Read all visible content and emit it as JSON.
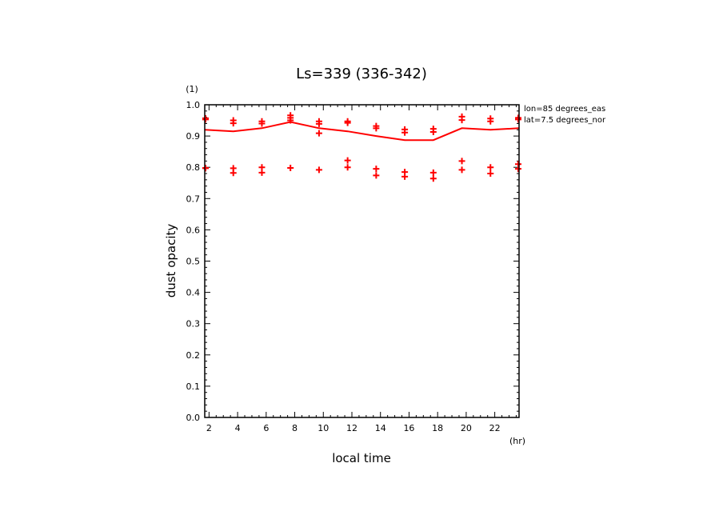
{
  "chart_data": {
    "type": "line",
    "title": "Ls=339 (336-342)",
    "xlabel": "local time",
    "ylabel": "dust opacity",
    "x_unit": "(hr)",
    "y_unit": "(1)",
    "xlim": [
      1.7,
      23.7
    ],
    "ylim": [
      0.0,
      1.0
    ],
    "x_ticks": [
      2,
      4,
      6,
      8,
      10,
      12,
      14,
      16,
      18,
      20,
      22
    ],
    "y_ticks": [
      0.0,
      0.1,
      0.2,
      0.3,
      0.4,
      0.5,
      0.6,
      0.7,
      0.8,
      0.9,
      1.0
    ],
    "x_tick_labels": [
      "2",
      "4",
      "6",
      "8",
      "10",
      "12",
      "14",
      "16",
      "18",
      "20",
      "22"
    ],
    "y_tick_labels": [
      "0.0",
      "0.1",
      "0.2",
      "0.3",
      "0.4",
      "0.5",
      "0.6",
      "0.7",
      "0.8",
      "0.9",
      "1.0"
    ],
    "annotations": [
      "lon=85 degrees_eas",
      "lat=7.5 degrees_nor"
    ],
    "color": "#ff0000",
    "series": [
      {
        "style": "line",
        "x": [
          1.7,
          3.7,
          5.7,
          7.7,
          9.7,
          11.7,
          13.7,
          15.7,
          17.7,
          19.7,
          21.7,
          23.7
        ],
        "values": [
          0.92,
          0.915,
          0.925,
          0.945,
          0.925,
          0.915,
          0.9,
          0.887,
          0.887,
          0.925,
          0.92,
          0.925
        ]
      },
      {
        "style": "markers",
        "marker": "+",
        "points": [
          [
            1.7,
            0.957
          ],
          [
            1.7,
            0.953
          ],
          [
            1.7,
            0.798
          ],
          [
            1.7,
            0.797
          ],
          [
            3.7,
            0.95
          ],
          [
            3.7,
            0.941
          ],
          [
            3.7,
            0.797
          ],
          [
            3.7,
            0.782
          ],
          [
            5.7,
            0.947
          ],
          [
            5.7,
            0.94
          ],
          [
            5.7,
            0.8
          ],
          [
            5.7,
            0.783
          ],
          [
            7.7,
            0.966
          ],
          [
            7.7,
            0.958
          ],
          [
            7.7,
            0.95
          ],
          [
            7.7,
            0.798
          ],
          [
            9.7,
            0.947
          ],
          [
            9.7,
            0.939
          ],
          [
            9.7,
            0.909
          ],
          [
            9.7,
            0.792
          ],
          [
            11.7,
            0.947
          ],
          [
            11.7,
            0.942
          ],
          [
            11.7,
            0.822
          ],
          [
            11.7,
            0.8
          ],
          [
            13.7,
            0.932
          ],
          [
            13.7,
            0.925
          ],
          [
            13.7,
            0.795
          ],
          [
            13.7,
            0.774
          ],
          [
            15.7,
            0.921
          ],
          [
            15.7,
            0.911
          ],
          [
            15.7,
            0.785
          ],
          [
            15.7,
            0.77
          ],
          [
            17.7,
            0.923
          ],
          [
            17.7,
            0.913
          ],
          [
            17.7,
            0.783
          ],
          [
            17.7,
            0.764
          ],
          [
            19.7,
            0.962
          ],
          [
            19.7,
            0.951
          ],
          [
            19.7,
            0.82
          ],
          [
            19.7,
            0.792
          ],
          [
            21.7,
            0.956
          ],
          [
            21.7,
            0.947
          ],
          [
            21.7,
            0.8
          ],
          [
            21.7,
            0.78
          ],
          [
            23.7,
            0.958
          ],
          [
            23.7,
            0.953
          ],
          [
            23.7,
            0.81
          ],
          [
            23.7,
            0.795
          ]
        ]
      }
    ]
  }
}
